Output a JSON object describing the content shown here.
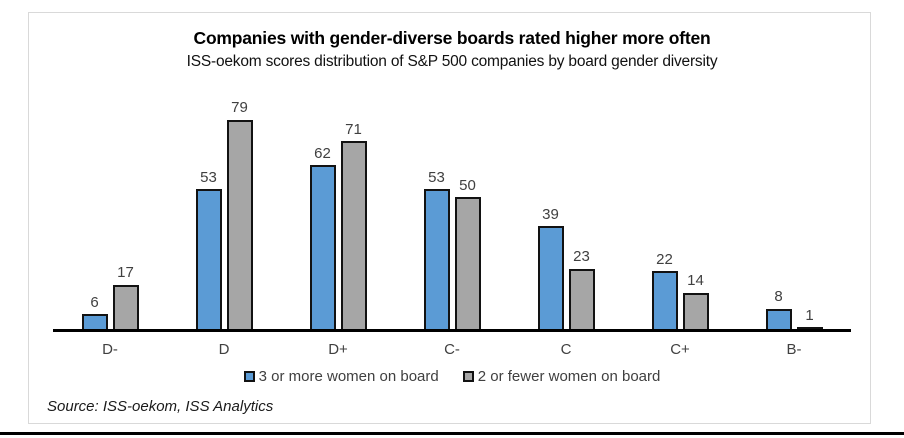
{
  "chart_data": {
    "type": "bar",
    "title": "Companies with gender-diverse boards rated higher more often",
    "subtitle": "ISS-oekom scores distribution of S&P 500 companies by board gender diversity",
    "categories": [
      "D-",
      "D",
      "D+",
      "C-",
      "C",
      "C+",
      "B-"
    ],
    "series": [
      {
        "name": "3 or more women on board",
        "color": "#5B9BD5",
        "values": [
          6,
          53,
          62,
          53,
          39,
          22,
          8
        ]
      },
      {
        "name": "2 or fewer women on board",
        "color": "#A6A6A6",
        "values": [
          17,
          79,
          71,
          50,
          23,
          14,
          1
        ]
      }
    ],
    "ylim": [
      0,
      80
    ],
    "grid": false,
    "data_labels": true,
    "legend_position": "bottom",
    "xlabel": "",
    "ylabel": ""
  },
  "source": {
    "text": "Source: ISS-oekom, ISS Analytics"
  },
  "colors": {
    "series1": "#5B9BD5",
    "series2": "#A6A6A6",
    "bar_border": "#121212",
    "axis_line": "#000000",
    "label_text": "#404040",
    "frame_border": "#D9D9D9"
  }
}
